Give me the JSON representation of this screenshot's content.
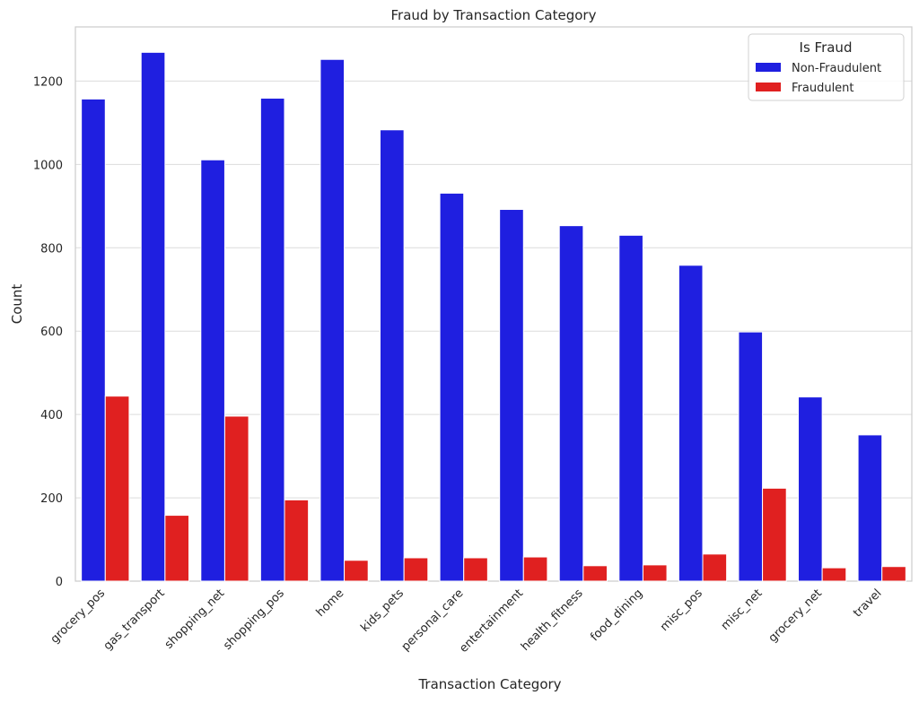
{
  "chart_data": {
    "type": "bar",
    "title": "Fraud by Transaction Category",
    "xlabel": "Transaction Category",
    "ylabel": "Count",
    "ylim": [
      0,
      1330
    ],
    "yticks": [
      0,
      200,
      400,
      600,
      800,
      1000,
      1200
    ],
    "grid": true,
    "legend": {
      "title": "Is Fraud",
      "placement": "top-right"
    },
    "categories": [
      "grocery_pos",
      "gas_transport",
      "shopping_net",
      "shopping_pos",
      "home",
      "kids_pets",
      "personal_care",
      "entertainment",
      "health_fitness",
      "food_dining",
      "misc_pos",
      "misc_net",
      "grocery_net",
      "travel"
    ],
    "series": [
      {
        "name": "Non-Fraudulent",
        "color": "#1f1fe0",
        "values": [
          1157,
          1269,
          1011,
          1159,
          1252,
          1083,
          931,
          892,
          853,
          830,
          758,
          598,
          442,
          351
        ]
      },
      {
        "name": "Fraudulent",
        "color": "#e02020",
        "values": [
          444,
          158,
          396,
          195,
          50,
          56,
          56,
          58,
          37,
          39,
          65,
          223,
          32,
          35
        ]
      }
    ]
  }
}
